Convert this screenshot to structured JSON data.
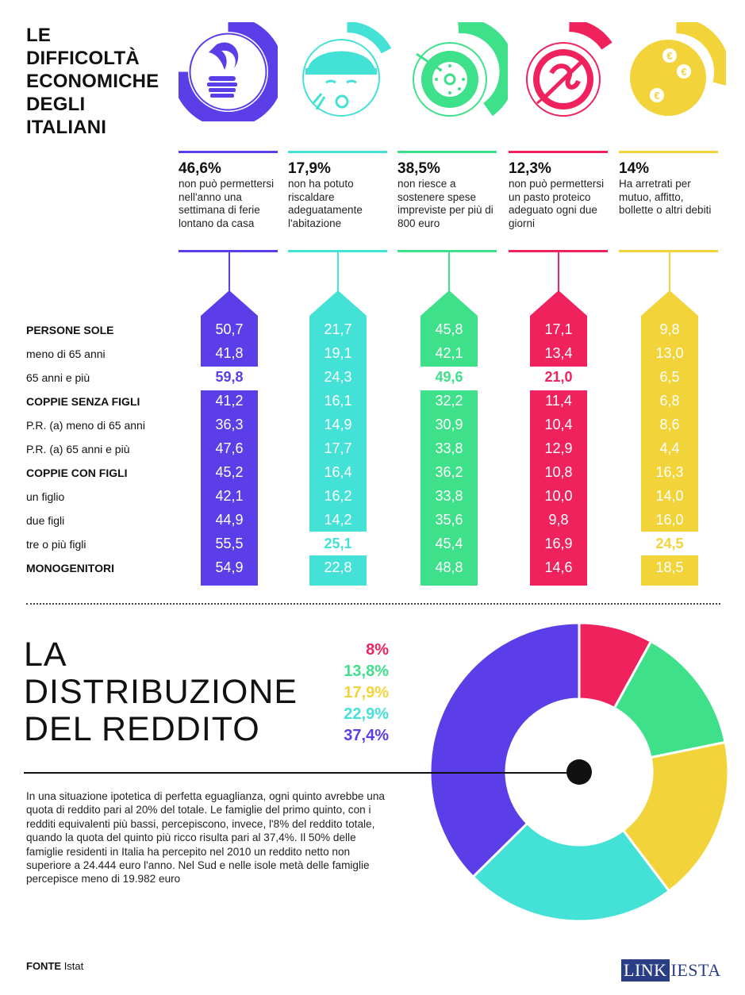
{
  "header": {
    "title_lines": [
      "LE",
      "DIFFICOLTÀ",
      "ECONOMICHE",
      "DEGLI",
      "ITALIANI"
    ]
  },
  "columns": [
    {
      "pct": "46,6%",
      "desc": "non può permettersi nell'anno una settimana di ferie lontano da casa",
      "color": "#5b3ee8",
      "icon": "beach-holiday-icon"
    },
    {
      "pct": "17,9%",
      "desc": "non ha potuto riscaldare adeguatamente l'abitazione",
      "color": "#44e1d6",
      "icon": "cold-face-icon"
    },
    {
      "pct": "38,5%",
      "desc": "non riesce a sostenere spese impreviste per più di 800 euro",
      "color": "#3ee08a",
      "icon": "safe-dial-icon"
    },
    {
      "pct": "12,3%",
      "desc": "non può permettersi un pasto proteico adeguato ogni due giorni",
      "color": "#f0225e",
      "icon": "no-food-icon"
    },
    {
      "pct": "14%",
      "desc": "Ha arretrati per mutuo, affitto, bollette o altri debiti",
      "color": "#f2d43a",
      "icon": "euro-coins-icon"
    }
  ],
  "rows": [
    {
      "label": "PERSONE SOLE",
      "bold": true
    },
    {
      "label": "meno di 65 anni",
      "bold": false
    },
    {
      "label": "65 anni e più",
      "bold": false
    },
    {
      "label": "COPPIE SENZA FIGLI",
      "bold": true
    },
    {
      "label": "P.R. (a) meno di 65 anni",
      "bold": false
    },
    {
      "label": "P.R. (a) 65 anni e più",
      "bold": false
    },
    {
      "label": "COPPIE CON FIGLI",
      "bold": true
    },
    {
      "label": "un figlio",
      "bold": false
    },
    {
      "label": "due figli",
      "bold": false
    },
    {
      "label": "tre o più figli",
      "bold": false
    },
    {
      "label": "MONOGENITORI",
      "bold": true
    }
  ],
  "table_values": [
    [
      "50,7",
      "41,8",
      "59,8",
      "41,2",
      "36,3",
      "47,6",
      "45,2",
      "42,1",
      "44,9",
      "55,5",
      "54,9"
    ],
    [
      "21,7",
      "19,1",
      "24,3",
      "16,1",
      "14,9",
      "17,7",
      "16,4",
      "16,2",
      "14,2",
      "25,1",
      "22,8"
    ],
    [
      "45,8",
      "42,1",
      "49,6",
      "32,2",
      "30,9",
      "33,8",
      "36,2",
      "33,8",
      "35,6",
      "45,4",
      "48,8"
    ],
    [
      "17,1",
      "13,4",
      "21,0",
      "11,4",
      "10,4",
      "12,9",
      "10,8",
      "10,0",
      "9,8",
      "16,9",
      "14,6"
    ],
    [
      "9,8",
      "13,0",
      "6,5",
      "6,8",
      "8,6",
      "4,4",
      "16,3",
      "14,0",
      "16,0",
      "24,5",
      "18,5"
    ]
  ],
  "section2": {
    "title_lines": [
      "LA",
      "DISTRIBUZIONE",
      "DEL REDDITO"
    ],
    "paragraph": "In una situazione ipotetica di perfetta eguaglianza, ogni quinto avrebbe una quota di reddito pari al 20% del totale. Le famiglie del primo quinto, con i redditi equivalenti più bassi, percepiscono, invece, l'8% del reddito totale, quando la quota del quinto più ricco risulta pari al 37,4%. Il 50% delle famiglie residenti in Italia ha percepito nel 2010 un reddito netto non superiore a 24.444 euro l'anno. Nel Sud e nelle isole metà delle famiglie percepisce meno di 19.982 euro"
  },
  "chart_data": {
    "type": "pie",
    "donut": true,
    "labels": [
      "8%",
      "13,8%",
      "17,9%",
      "22,9%",
      "37,4%"
    ],
    "values": [
      8,
      13.8,
      17.9,
      22.9,
      37.4
    ],
    "colors": [
      "#f0225e",
      "#3ee08a",
      "#f2d43a",
      "#44e1d6",
      "#5b3ee8"
    ]
  },
  "footer": {
    "source_label": "FONTE",
    "source_name": "Istat",
    "logo_part1": "LINK",
    "logo_part2": "IESTA"
  }
}
